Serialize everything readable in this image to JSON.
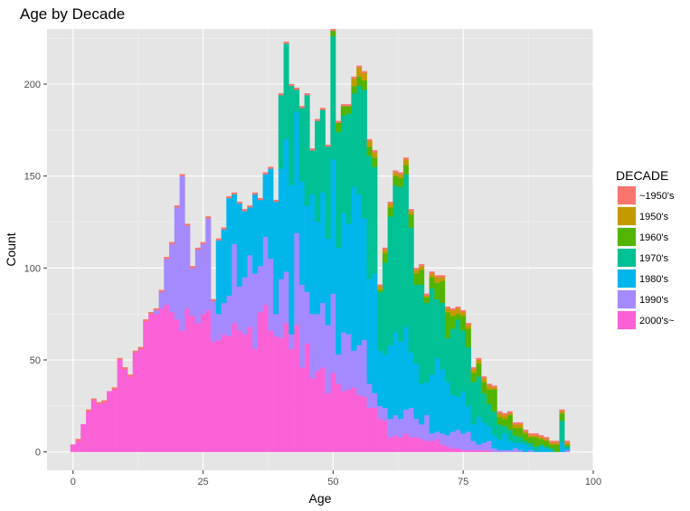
{
  "chart_data": {
    "type": "bar",
    "stacked": true,
    "title": "Age by Decade",
    "xlabel": "Age",
    "ylabel": "Count",
    "xlim": [
      -5,
      100
    ],
    "ylim": [
      -10,
      230
    ],
    "x_ticks": [
      0,
      25,
      50,
      75,
      100
    ],
    "y_ticks": [
      0,
      50,
      100,
      150,
      200
    ],
    "x_tick_labels": [
      "0",
      "25",
      "50",
      "75",
      "100"
    ],
    "y_tick_labels": [
      "0",
      "50",
      "100",
      "150",
      "200"
    ],
    "grid": true,
    "legend": {
      "title": "DECADE",
      "position": "right",
      "entries": [
        "~1950's",
        "1950's",
        "1960's",
        "1970's",
        "1980's",
        "1990's",
        "2000's~"
      ]
    },
    "colors": {
      "panel_background": "#e5e5e5",
      "grid_major": "#ffffff",
      "grid_minor": "#f2f2f2",
      "~1950's": "#f8766d",
      "1950's": "#c49a00",
      "1960's": "#53b400",
      "1970's": "#00c094",
      "1980's": "#00b6eb",
      "1990's": "#a58aff",
      "2000's~": "#fb61d7"
    },
    "x": [
      0,
      1,
      2,
      3,
      4,
      5,
      6,
      7,
      8,
      9,
      10,
      11,
      12,
      13,
      14,
      15,
      16,
      17,
      18,
      19,
      20,
      21,
      22,
      23,
      24,
      25,
      26,
      27,
      28,
      29,
      30,
      31,
      32,
      33,
      34,
      35,
      36,
      37,
      38,
      39,
      40,
      41,
      42,
      43,
      44,
      45,
      46,
      47,
      48,
      49,
      50,
      51,
      52,
      53,
      54,
      55,
      56,
      57,
      58,
      59,
      60,
      61,
      62,
      63,
      64,
      65,
      66,
      67,
      68,
      69,
      70,
      71,
      72,
      73,
      74,
      75,
      76,
      77,
      78,
      79,
      80,
      81,
      82,
      83,
      84,
      85,
      86,
      87,
      88,
      89,
      90,
      91,
      92,
      93,
      94,
      95
    ],
    "series": [
      {
        "name": "2000's~",
        "values": [
          4,
          6,
          15,
          22,
          28,
          26,
          27,
          33,
          34,
          50,
          45,
          41,
          54,
          56,
          71,
          75,
          75,
          78,
          80,
          76,
          72,
          66,
          78,
          74,
          70,
          75,
          77,
          60,
          61,
          64,
          63,
          70,
          66,
          64,
          68,
          56,
          76,
          80,
          66,
          63,
          62,
          70,
          56,
          69,
          46,
          59,
          40,
          44,
          46,
          32,
          43,
          37,
          33,
          34,
          35,
          31,
          30,
          24,
          24,
          18,
          17,
          8,
          9,
          8,
          10,
          8,
          8,
          7,
          6,
          6,
          7,
          4,
          3,
          2,
          2,
          1,
          1,
          1,
          1,
          1,
          1,
          0,
          0,
          0,
          0,
          0,
          0,
          0,
          0,
          0,
          0,
          0,
          0,
          0,
          0,
          0
        ]
      },
      {
        "name": "1990's",
        "values": [
          0,
          0,
          0,
          0,
          0,
          0,
          0,
          0,
          0,
          0,
          0,
          0,
          0,
          0,
          0,
          0,
          2,
          9,
          25,
          37,
          61,
          84,
          45,
          26,
          40,
          38,
          50,
          22,
          14,
          17,
          22,
          43,
          24,
          31,
          39,
          41,
          25,
          37,
          39,
          12,
          32,
          28,
          8,
          50,
          45,
          28,
          35,
          31,
          35,
          37,
          43,
          16,
          32,
          30,
          20,
          27,
          31,
          13,
          8,
          7,
          7,
          10,
          11,
          10,
          13,
          16,
          10,
          8,
          14,
          4,
          4,
          6,
          6,
          9,
          10,
          9,
          10,
          5,
          3,
          4,
          5,
          2,
          1,
          1,
          1,
          2,
          1,
          0,
          1,
          0,
          0,
          0,
          0,
          0,
          0,
          1
        ]
      },
      {
        "name": "1980's",
        "values": [
          0,
          0,
          0,
          0,
          0,
          0,
          0,
          0,
          0,
          0,
          0,
          0,
          0,
          0,
          0,
          0,
          0,
          0,
          0,
          0,
          0,
          0,
          0,
          0,
          0,
          0,
          0,
          0,
          40,
          40,
          53,
          27,
          45,
          36,
          26,
          43,
          36,
          34,
          49,
          61,
          60,
          72,
          81,
          66,
          56,
          47,
          65,
          50,
          60,
          47,
          73,
          58,
          65,
          60,
          89,
          82,
          66,
          57,
          65,
          30,
          29,
          40,
          45,
          42,
          45,
          30,
          30,
          22,
          18,
          32,
          40,
          35,
          29,
          20,
          18,
          23,
          14,
          9,
          15,
          11,
          8,
          7,
          6,
          9,
          5,
          3,
          4,
          4,
          2,
          1,
          3,
          2,
          1,
          0,
          5,
          1
        ]
      },
      {
        "name": "1970's",
        "values": [
          0,
          0,
          0,
          0,
          0,
          0,
          0,
          0,
          0,
          0,
          0,
          0,
          0,
          0,
          0,
          0,
          0,
          0,
          0,
          0,
          0,
          0,
          0,
          0,
          0,
          0,
          0,
          0,
          0,
          0,
          0,
          0,
          0,
          0,
          0,
          0,
          0,
          0,
          0,
          0,
          40,
          52,
          54,
          12,
          40,
          60,
          24,
          55,
          45,
          50,
          67,
          63,
          53,
          60,
          51,
          59,
          70,
          67,
          58,
          32,
          50,
          70,
          80,
          84,
          83,
          68,
          43,
          54,
          43,
          47,
          32,
          36,
          24,
          36,
          42,
          33,
          32,
          23,
          22,
          16,
          12,
          13,
          8,
          4,
          6,
          4,
          3,
          2,
          2,
          2,
          1,
          1,
          1,
          0,
          12,
          1
        ]
      },
      {
        "name": "1960's",
        "values": [
          0,
          0,
          0,
          0,
          0,
          0,
          0,
          0,
          0,
          0,
          0,
          0,
          0,
          0,
          0,
          0,
          0,
          0,
          0,
          0,
          0,
          0,
          0,
          0,
          0,
          0,
          0,
          0,
          0,
          0,
          0,
          0,
          0,
          0,
          0,
          0,
          0,
          0,
          0,
          0,
          0,
          0,
          0,
          0,
          0,
          0,
          0,
          0,
          0,
          0,
          3,
          5,
          5,
          4,
          4,
          5,
          5,
          5,
          5,
          1,
          5,
          5,
          5,
          5,
          5,
          7,
          6,
          8,
          3,
          6,
          9,
          12,
          14,
          7,
          3,
          8,
          10,
          5,
          7,
          6,
          8,
          12,
          4,
          4,
          8,
          4,
          5,
          4,
          3,
          5,
          3,
          3,
          2,
          4,
          4,
          1
        ]
      },
      {
        "name": "1950's",
        "values": [
          0,
          0,
          0,
          0,
          0,
          0,
          0,
          0,
          0,
          0,
          0,
          0,
          0,
          0,
          0,
          0,
          0,
          0,
          0,
          0,
          0,
          0,
          0,
          0,
          0,
          0,
          0,
          0,
          0,
          0,
          0,
          0,
          0,
          0,
          0,
          0,
          0,
          0,
          0,
          0,
          0,
          0,
          0,
          0,
          0,
          0,
          0,
          0,
          0,
          0,
          0,
          0,
          0,
          0,
          4,
          5,
          4,
          3,
          3,
          2,
          2,
          2,
          2,
          2,
          3,
          2,
          2,
          2,
          1,
          2,
          3,
          2,
          2,
          3,
          3,
          2,
          2,
          2,
          2,
          2,
          2,
          1,
          2,
          2,
          1,
          2,
          2,
          1,
          1,
          1,
          1,
          1,
          1,
          1,
          1,
          1
        ]
      },
      {
        "name": "~1950's",
        "values": [
          0,
          1,
          0,
          1,
          1,
          1,
          1,
          0,
          1,
          1,
          1,
          1,
          1,
          1,
          1,
          1,
          1,
          1,
          1,
          1,
          1,
          1,
          1,
          1,
          1,
          1,
          1,
          1,
          1,
          1,
          1,
          1,
          1,
          1,
          1,
          1,
          1,
          1,
          1,
          1,
          1,
          1,
          1,
          1,
          1,
          1,
          1,
          1,
          1,
          1,
          1,
          1,
          1,
          1,
          1,
          1,
          1,
          1,
          1,
          1,
          1,
          1,
          1,
          1,
          1,
          1,
          1,
          1,
          1,
          1,
          1,
          1,
          1,
          1,
          1,
          1,
          1,
          1,
          1,
          1,
          1,
          1,
          1,
          1,
          1,
          1,
          1,
          1,
          1,
          1,
          1,
          1,
          1,
          1,
          1,
          1
        ]
      }
    ]
  }
}
